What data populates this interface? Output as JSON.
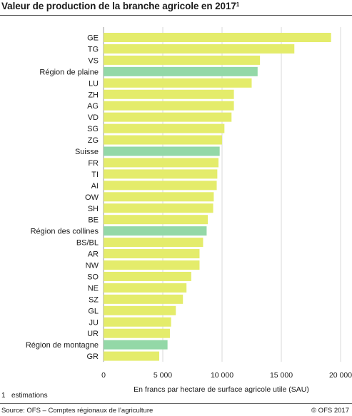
{
  "title": "Valeur de production de la branche agricole en 2017",
  "title_footnote_mark": "1",
  "footnote": {
    "number": "1",
    "text": "estimations"
  },
  "source": "Source: OFS – Comptes régionaux de l’agriculture",
  "copyright": "© OFS  2017",
  "colors": {
    "canton_bar": "#e4ec6b",
    "region_bar": "#93d8a7",
    "grid": "#d9d9d9",
    "axis": "#9a9a9a"
  },
  "chart_data": {
    "type": "bar",
    "orientation": "horizontal",
    "xlabel": "En francs par hectare de surface agricole utile (SAU)",
    "xlim": [
      0,
      20000
    ],
    "xticks": [
      0,
      5000,
      10000,
      15000,
      20000
    ],
    "xtick_labels": [
      "0",
      "5 000",
      "10 000",
      "15 000",
      "20 000"
    ],
    "grid": true,
    "categories": [
      "GE",
      "TG",
      "VS",
      "Région de plaine",
      "LU",
      "ZH",
      "AG",
      "VD",
      "SG",
      "ZG",
      "Suisse",
      "FR",
      "TI",
      "AI",
      "OW",
      "SH",
      "BE",
      "Région des collines",
      "BS/BL",
      "AR",
      "NW",
      "SO",
      "NE",
      "SZ",
      "GL",
      "JU",
      "UR",
      "Région de montagne",
      "GR"
    ],
    "values": [
      19200,
      16100,
      13200,
      13000,
      12500,
      11000,
      11000,
      10800,
      10200,
      10000,
      9800,
      9700,
      9600,
      9550,
      9300,
      9250,
      8800,
      8700,
      8400,
      8100,
      8100,
      7400,
      7000,
      6700,
      6100,
      5700,
      5600,
      5400,
      4700
    ],
    "highlighted": [
      "Région de plaine",
      "Suisse",
      "Région des collines",
      "Région de montagne"
    ]
  }
}
